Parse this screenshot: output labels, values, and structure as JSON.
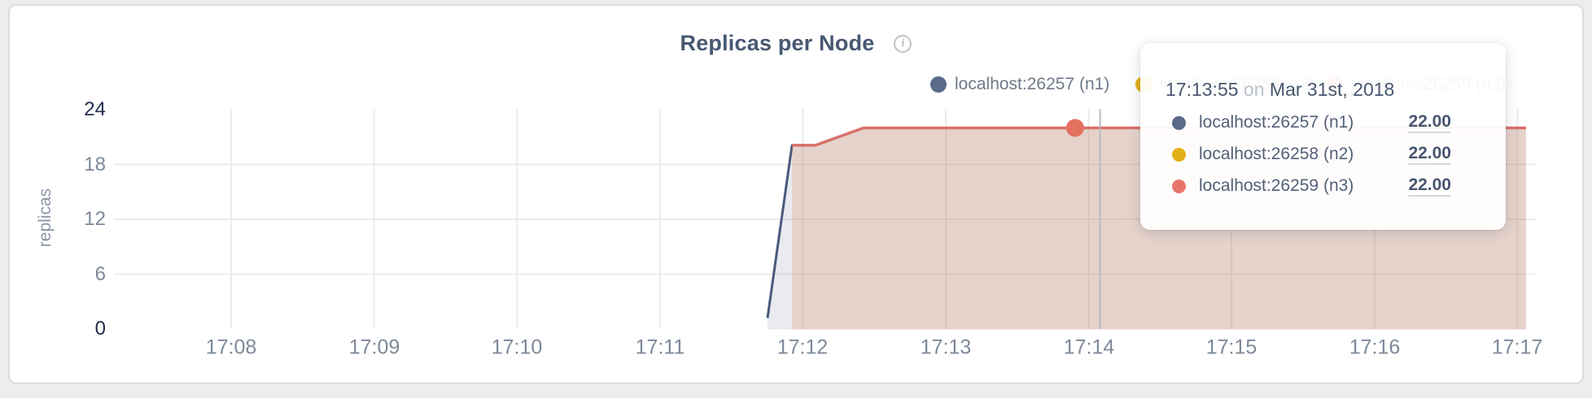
{
  "title": {
    "text": "Replicas per Node",
    "info_glyph": "i"
  },
  "legend": [
    {
      "label": "localhost:26257 (n1)",
      "color": "#5b6a88"
    },
    {
      "label": "localhost:26258 (n2)",
      "color": "#e2b019"
    },
    {
      "label": "localhost:26259 (n3)",
      "color": "#e8756b"
    }
  ],
  "tooltip": {
    "time": "17:13:55",
    "on_word": "on",
    "date": "Mar 31st, 2018",
    "rows": [
      {
        "label": "localhost:26257 (n1)",
        "value": "22.00",
        "color": "#5b6a88"
      },
      {
        "label": "localhost:26258 (n2)",
        "value": "22.00",
        "color": "#e2b019"
      },
      {
        "label": "localhost:26259 (n3)",
        "value": "22.00",
        "color": "#e8756b"
      }
    ]
  },
  "chart_data": {
    "type": "area",
    "title": "Replicas per Node",
    "xlabel": "",
    "ylabel": "replicas",
    "ylim": [
      0,
      24
    ],
    "y_ticks": [
      "0",
      "6",
      "12",
      "18",
      "24"
    ],
    "grid_y_values": [
      6,
      12,
      18
    ],
    "x_ticks": [
      "17:08",
      "17:09",
      "17:10",
      "17:11",
      "17:12",
      "17:13",
      "17:14",
      "17:15",
      "17:16",
      "17:17"
    ],
    "x_tick_minutes": [
      8,
      9,
      10,
      11,
      12,
      13,
      14,
      15,
      16,
      17
    ],
    "legend_position": "top-right",
    "grid": true,
    "series": [
      {
        "name": "localhost:26257 (n1)",
        "color": "#4a5a7c",
        "fill_opacity": 0.12,
        "line_width": 3,
        "points": [
          [
            11.753,
            1.2
          ],
          [
            11.924,
            20.1
          ],
          [
            12.088,
            20.1
          ],
          [
            12.424,
            22
          ],
          [
            17.06,
            22
          ]
        ]
      },
      {
        "name": "localhost:26258 (n2)",
        "color": "#e2b019",
        "fill_opacity": 0.08,
        "line_width": 2,
        "points": [
          [
            11.924,
            20.1
          ],
          [
            12.088,
            20.1
          ],
          [
            12.424,
            22
          ],
          [
            17.06,
            22
          ]
        ]
      },
      {
        "name": "localhost:26259 (n3)",
        "color": "#d9716a",
        "fill_opacity": 0.16,
        "line_width": 3.5,
        "points": [
          [
            11.924,
            20.1
          ],
          [
            12.088,
            20.1
          ],
          [
            12.424,
            22
          ],
          [
            17.06,
            22
          ]
        ]
      }
    ],
    "highlight_point": {
      "series": "localhost:26259 (n3)",
      "x_min": 13.905,
      "value": 22,
      "color": "#e4705f",
      "radius": 11
    },
    "crosshair_min": 14.08,
    "crosshair_color": "#b7bac0",
    "grid_color": "#ebebec"
  }
}
